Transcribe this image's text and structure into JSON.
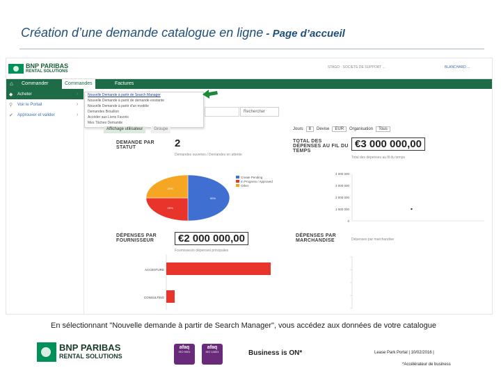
{
  "slide": {
    "title": "Création d’une demande catalogue en ligne",
    "subtitle": " - Page d’accueil",
    "caption": "En sélectionnant \"Nouvelle demande à partir de Search Manager\", vous accédez aux données de votre catalogue"
  },
  "app": {
    "logo_line1": "BNP PARIBAS",
    "logo_line2": "RENTAL SOLUTIONS",
    "account_text": "STAGO · SOCIETE DE SUPPORT ...",
    "user_text": "BLANCHARD ...",
    "nav": {
      "home_icon": "home-icon",
      "tabs": [
        {
          "label": "Commander"
        },
        {
          "label": "Commandes"
        },
        {
          "label": "Factures"
        }
      ]
    },
    "sidebar": [
      {
        "label": "Acheter",
        "icon": "cart-icon"
      },
      {
        "label": "Voir le Portail",
        "icon": "search-icon"
      },
      {
        "label": "Approuver et valider",
        "icon": "check-icon"
      }
    ],
    "dropdown": [
      "Nouvelle Demande à partir de Search Manager",
      "Nouvelle Demande à partir de demande existante",
      "Nouvelle Demande à partir d'un modèle",
      "Demandes Brouillon",
      "Accéder aux Liens Favoris",
      "Mes Tâches Demande"
    ],
    "search_button": "Rechercher",
    "tabs": [
      "Affichage utilisateur",
      "Groupe"
    ],
    "filters": {
      "days_label": "Jours",
      "days_value": "8",
      "currency_label": "Devise",
      "currency_value": "EUR",
      "org_label": "Organisation",
      "org_value": "Tous"
    },
    "kpis": {
      "by_status": {
        "label": "DEMANDE PAR STATUT",
        "value": "2",
        "sub": "Demandes ouvertes / Demandes en attente"
      },
      "total_spend": {
        "label": "TOTAL DES DÉPENSES AU FIL DU TEMPS",
        "value": "€3 000 000,00",
        "sub": "Total des dépenses au fil du temps"
      },
      "by_supplier": {
        "label": "DÉPENSES PAR FOURNISSEUR",
        "value": "€2 000 000,00",
        "sub": "Fournisseurs dépenses principales"
      },
      "by_goods": {
        "label": "DÉPENSES PAR MARCHANDISE",
        "sub": "Dépenses par marchandise"
      }
    },
    "colors": {
      "green": "#1e6b47",
      "blue": "#3f6fd1",
      "red": "#e8342a",
      "orange": "#f5a623"
    }
  },
  "chart_data": [
    {
      "type": "pie",
      "title": "",
      "categories": [
        "Create Pending",
        "In Progress / Approved",
        "Other"
      ],
      "values": [
        50,
        25,
        25
      ],
      "slice_labels": [
        "50%",
        "25%",
        "25%"
      ],
      "colors": [
        "#3f6fd1",
        "#e8342a",
        "#f5a623"
      ]
    },
    {
      "type": "scatter",
      "title": "",
      "ylabels": [
        "4 000 000",
        "3 000 000",
        "2 000 000",
        "1 000 000",
        "0"
      ],
      "ylim": [
        0,
        4000000
      ],
      "points": [
        {
          "x": 0.45,
          "y": 1000000
        }
      ]
    },
    {
      "type": "bar",
      "orientation": "horizontal",
      "title": "",
      "categories": [
        "ACCENTURE",
        "CONSULTING"
      ],
      "values": [
        2000000,
        160000
      ],
      "xlim": [
        0,
        2200000
      ],
      "color": "#e8342a"
    }
  ],
  "footer": {
    "logo_line1": "BNP PARIBAS",
    "logo_line2": "RENTAL SOLUTIONS",
    "cert1": "afaq",
    "cert1_sub": "ISO 9001",
    "cert2": "afaq",
    "cert2_sub": "ISO 14001",
    "slogan": "Business is ON*",
    "meta": "Lease Park Portal  |  10/02/2016  |",
    "note": "*Accélérateur de business"
  }
}
